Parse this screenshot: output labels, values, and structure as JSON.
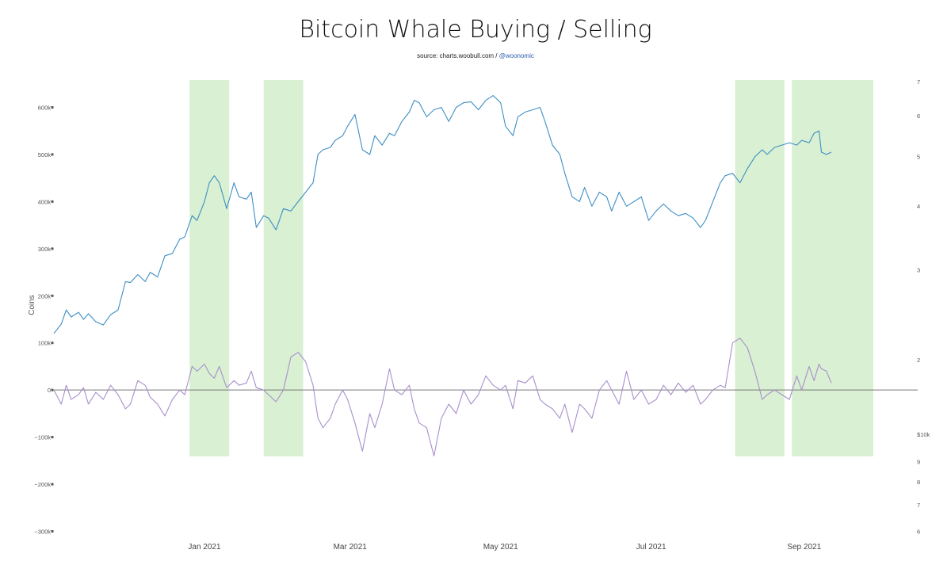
{
  "title": "Bitcoin Whale Buying / Selling",
  "source_prefix": "source: charts.woobull.com / ",
  "source_handle": "@woonomic",
  "colors": {
    "price": "#3d8fc4",
    "flow": "#a88fcc",
    "shade": "#d9f0d2",
    "zero_line": "#777777"
  },
  "chart_data": {
    "type": "line",
    "title": "Bitcoin Whale Buying / Selling",
    "ylabel": "Coins",
    "ylim": [
      -300000,
      700000
    ],
    "y_ticks": [
      {
        "v": 600000,
        "label": "600k"
      },
      {
        "v": 500000,
        "label": "500k"
      },
      {
        "v": 400000,
        "label": "400k"
      },
      {
        "v": 300000,
        "label": "300k"
      },
      {
        "v": 200000,
        "label": "200k"
      },
      {
        "v": 100000,
        "label": "100k"
      },
      {
        "v": 0,
        "label": "0"
      },
      {
        "v": -100000,
        "label": "−100k"
      },
      {
        "v": -200000,
        "label": "−200k"
      },
      {
        "v": -300000,
        "label": "−300k"
      }
    ],
    "x_range": [
      "2020-11-01",
      "2021-10-17"
    ],
    "x_ticks": [
      {
        "date": "2021-01-01",
        "label": "Jan 2021"
      },
      {
        "date": "2021-03-01",
        "label": "Mar 2021"
      },
      {
        "date": "2021-05-01",
        "label": "May 2021"
      },
      {
        "date": "2021-07-01",
        "label": "Jul 2021"
      },
      {
        "date": "2021-09-01",
        "label": "Sep 2021"
      }
    ],
    "right_axis_top": {
      "log_range": [
        1.3,
        7.2
      ],
      "ticks": [
        {
          "v": 7,
          "label": "7"
        },
        {
          "v": 6,
          "label": "6"
        },
        {
          "v": 5,
          "label": "5"
        },
        {
          "v": 4,
          "label": "4"
        },
        {
          "v": 3,
          "label": "3"
        },
        {
          "v": 2,
          "label": "2"
        }
      ]
    },
    "right_axis_bottom": {
      "unit_label": "$10k",
      "log_range": [
        5.8,
        10.3
      ],
      "ticks": [
        {
          "v": 9,
          "label": "9"
        },
        {
          "v": 8,
          "label": "8"
        },
        {
          "v": 7,
          "label": "7"
        },
        {
          "v": 6,
          "label": "6"
        }
      ]
    },
    "shaded_periods": [
      [
        "2020-12-26",
        "2021-01-11"
      ],
      [
        "2021-01-25",
        "2021-02-10"
      ],
      [
        "2021-08-04",
        "2021-08-24"
      ],
      [
        "2021-08-27",
        "2021-09-29"
      ]
    ],
    "series": [
      {
        "name": "",
        "axis": "left",
        "points": [
          [
            "2020-11-01",
            120000
          ],
          [
            "2020-11-04",
            140000
          ],
          [
            "2020-11-06",
            170000
          ],
          [
            "2020-11-08",
            155000
          ],
          [
            "2020-11-11",
            165000
          ],
          [
            "2020-11-13",
            150000
          ],
          [
            "2020-11-15",
            162000
          ],
          [
            "2020-11-18",
            145000
          ],
          [
            "2020-11-21",
            138000
          ],
          [
            "2020-11-24",
            160000
          ],
          [
            "2020-11-27",
            170000
          ],
          [
            "2020-11-30",
            230000
          ],
          [
            "2020-12-02",
            228000
          ],
          [
            "2020-12-05",
            245000
          ],
          [
            "2020-12-08",
            230000
          ],
          [
            "2020-12-10",
            250000
          ],
          [
            "2020-12-13",
            240000
          ],
          [
            "2020-12-16",
            285000
          ],
          [
            "2020-12-19",
            290000
          ],
          [
            "2020-12-22",
            320000
          ],
          [
            "2020-12-24",
            325000
          ],
          [
            "2020-12-27",
            370000
          ],
          [
            "2020-12-29",
            360000
          ],
          [
            "2021-01-01",
            400000
          ],
          [
            "2021-01-03",
            440000
          ],
          [
            "2021-01-05",
            455000
          ],
          [
            "2021-01-07",
            440000
          ],
          [
            "2021-01-10",
            385000
          ],
          [
            "2021-01-13",
            440000
          ],
          [
            "2021-01-15",
            410000
          ],
          [
            "2021-01-18",
            405000
          ],
          [
            "2021-01-20",
            420000
          ],
          [
            "2021-01-22",
            345000
          ],
          [
            "2021-01-25",
            370000
          ],
          [
            "2021-01-27",
            365000
          ],
          [
            "2021-01-30",
            340000
          ],
          [
            "2021-02-02",
            385000
          ],
          [
            "2021-02-05",
            380000
          ],
          [
            "2021-02-08",
            400000
          ],
          [
            "2021-02-11",
            420000
          ],
          [
            "2021-02-14",
            440000
          ],
          [
            "2021-02-16",
            500000
          ],
          [
            "2021-02-18",
            510000
          ],
          [
            "2021-02-21",
            515000
          ],
          [
            "2021-02-23",
            530000
          ],
          [
            "2021-02-26",
            540000
          ],
          [
            "2021-02-28",
            560000
          ],
          [
            "2021-03-03",
            585000
          ],
          [
            "2021-03-06",
            510000
          ],
          [
            "2021-03-09",
            500000
          ],
          [
            "2021-03-11",
            540000
          ],
          [
            "2021-03-14",
            520000
          ],
          [
            "2021-03-17",
            545000
          ],
          [
            "2021-03-19",
            540000
          ],
          [
            "2021-03-22",
            570000
          ],
          [
            "2021-03-25",
            590000
          ],
          [
            "2021-03-27",
            615000
          ],
          [
            "2021-03-29",
            610000
          ],
          [
            "2021-04-01",
            580000
          ],
          [
            "2021-04-04",
            595000
          ],
          [
            "2021-04-07",
            600000
          ],
          [
            "2021-04-10",
            570000
          ],
          [
            "2021-04-13",
            600000
          ],
          [
            "2021-04-16",
            610000
          ],
          [
            "2021-04-19",
            612000
          ],
          [
            "2021-04-22",
            595000
          ],
          [
            "2021-04-25",
            615000
          ],
          [
            "2021-04-28",
            625000
          ],
          [
            "2021-05-01",
            610000
          ],
          [
            "2021-05-03",
            560000
          ],
          [
            "2021-05-06",
            540000
          ],
          [
            "2021-05-08",
            580000
          ],
          [
            "2021-05-11",
            590000
          ],
          [
            "2021-05-14",
            595000
          ],
          [
            "2021-05-17",
            600000
          ],
          [
            "2021-05-19",
            570000
          ],
          [
            "2021-05-22",
            520000
          ],
          [
            "2021-05-25",
            500000
          ],
          [
            "2021-05-27",
            460000
          ],
          [
            "2021-05-30",
            410000
          ],
          [
            "2021-06-02",
            400000
          ],
          [
            "2021-06-04",
            430000
          ],
          [
            "2021-06-07",
            390000
          ],
          [
            "2021-06-10",
            420000
          ],
          [
            "2021-06-13",
            410000
          ],
          [
            "2021-06-15",
            380000
          ],
          [
            "2021-06-18",
            420000
          ],
          [
            "2021-06-21",
            390000
          ],
          [
            "2021-06-24",
            400000
          ],
          [
            "2021-06-27",
            410000
          ],
          [
            "2021-06-30",
            360000
          ],
          [
            "2021-07-03",
            380000
          ],
          [
            "2021-07-06",
            395000
          ],
          [
            "2021-07-09",
            380000
          ],
          [
            "2021-07-12",
            370000
          ],
          [
            "2021-07-15",
            375000
          ],
          [
            "2021-07-18",
            365000
          ],
          [
            "2021-07-21",
            345000
          ],
          [
            "2021-07-23",
            360000
          ],
          [
            "2021-07-26",
            400000
          ],
          [
            "2021-07-29",
            440000
          ],
          [
            "2021-07-31",
            455000
          ],
          [
            "2021-08-03",
            460000
          ],
          [
            "2021-08-06",
            440000
          ],
          [
            "2021-08-09",
            470000
          ],
          [
            "2021-08-12",
            495000
          ],
          [
            "2021-08-15",
            510000
          ],
          [
            "2021-08-17",
            500000
          ],
          [
            "2021-08-20",
            515000
          ],
          [
            "2021-08-23",
            520000
          ],
          [
            "2021-08-26",
            525000
          ],
          [
            "2021-08-29",
            520000
          ],
          [
            "2021-08-31",
            530000
          ],
          [
            "2021-09-03",
            525000
          ],
          [
            "2021-09-05",
            545000
          ],
          [
            "2021-09-07",
            550000
          ],
          [
            "2021-09-08",
            505000
          ],
          [
            "2021-09-10",
            500000
          ],
          [
            "2021-09-12",
            505000
          ]
        ]
      },
      {
        "name": "",
        "axis": "left",
        "points": [
          [
            "2020-11-01",
            0
          ],
          [
            "2020-11-04",
            -30000
          ],
          [
            "2020-11-06",
            10000
          ],
          [
            "2020-11-08",
            -20000
          ],
          [
            "2020-11-11",
            -10000
          ],
          [
            "2020-11-13",
            5000
          ],
          [
            "2020-11-15",
            -30000
          ],
          [
            "2020-11-18",
            -5000
          ],
          [
            "2020-11-21",
            -20000
          ],
          [
            "2020-11-24",
            10000
          ],
          [
            "2020-11-27",
            -10000
          ],
          [
            "2020-11-30",
            -40000
          ],
          [
            "2020-12-02",
            -30000
          ],
          [
            "2020-12-05",
            20000
          ],
          [
            "2020-12-08",
            10000
          ],
          [
            "2020-12-10",
            -15000
          ],
          [
            "2020-12-13",
            -30000
          ],
          [
            "2020-12-16",
            -55000
          ],
          [
            "2020-12-19",
            -20000
          ],
          [
            "2020-12-22",
            0
          ],
          [
            "2020-12-24",
            -10000
          ],
          [
            "2020-12-27",
            50000
          ],
          [
            "2020-12-29",
            40000
          ],
          [
            "2021-01-01",
            55000
          ],
          [
            "2021-01-03",
            35000
          ],
          [
            "2021-01-05",
            25000
          ],
          [
            "2021-01-07",
            50000
          ],
          [
            "2021-01-10",
            5000
          ],
          [
            "2021-01-13",
            20000
          ],
          [
            "2021-01-15",
            10000
          ],
          [
            "2021-01-18",
            15000
          ],
          [
            "2021-01-20",
            40000
          ],
          [
            "2021-01-22",
            5000
          ],
          [
            "2021-01-25",
            0
          ],
          [
            "2021-01-27",
            -10000
          ],
          [
            "2021-01-30",
            -25000
          ],
          [
            "2021-02-02",
            0
          ],
          [
            "2021-02-05",
            70000
          ],
          [
            "2021-02-08",
            80000
          ],
          [
            "2021-02-11",
            60000
          ],
          [
            "2021-02-14",
            10000
          ],
          [
            "2021-02-16",
            -60000
          ],
          [
            "2021-02-18",
            -80000
          ],
          [
            "2021-02-21",
            -60000
          ],
          [
            "2021-02-23",
            -30000
          ],
          [
            "2021-02-26",
            0
          ],
          [
            "2021-02-28",
            -20000
          ],
          [
            "2021-03-03",
            -70000
          ],
          [
            "2021-03-06",
            -130000
          ],
          [
            "2021-03-09",
            -50000
          ],
          [
            "2021-03-11",
            -80000
          ],
          [
            "2021-03-14",
            -30000
          ],
          [
            "2021-03-17",
            45000
          ],
          [
            "2021-03-19",
            0
          ],
          [
            "2021-03-22",
            -10000
          ],
          [
            "2021-03-25",
            10000
          ],
          [
            "2021-03-27",
            -40000
          ],
          [
            "2021-03-29",
            -70000
          ],
          [
            "2021-04-01",
            -80000
          ],
          [
            "2021-04-04",
            -140000
          ],
          [
            "2021-04-07",
            -60000
          ],
          [
            "2021-04-10",
            -30000
          ],
          [
            "2021-04-13",
            -50000
          ],
          [
            "2021-04-16",
            0
          ],
          [
            "2021-04-19",
            -30000
          ],
          [
            "2021-04-22",
            -10000
          ],
          [
            "2021-04-25",
            30000
          ],
          [
            "2021-04-28",
            10000
          ],
          [
            "2021-05-01",
            0
          ],
          [
            "2021-05-03",
            10000
          ],
          [
            "2021-05-06",
            -40000
          ],
          [
            "2021-05-08",
            20000
          ],
          [
            "2021-05-11",
            15000
          ],
          [
            "2021-05-14",
            30000
          ],
          [
            "2021-05-17",
            -20000
          ],
          [
            "2021-05-19",
            -30000
          ],
          [
            "2021-05-22",
            -40000
          ],
          [
            "2021-05-25",
            -60000
          ],
          [
            "2021-05-27",
            -30000
          ],
          [
            "2021-05-30",
            -90000
          ],
          [
            "2021-06-02",
            -30000
          ],
          [
            "2021-06-04",
            -40000
          ],
          [
            "2021-06-07",
            -60000
          ],
          [
            "2021-06-10",
            0
          ],
          [
            "2021-06-13",
            20000
          ],
          [
            "2021-06-15",
            0
          ],
          [
            "2021-06-18",
            -30000
          ],
          [
            "2021-06-21",
            40000
          ],
          [
            "2021-06-24",
            -20000
          ],
          [
            "2021-06-27",
            0
          ],
          [
            "2021-06-30",
            -30000
          ],
          [
            "2021-07-03",
            -20000
          ],
          [
            "2021-07-06",
            10000
          ],
          [
            "2021-07-09",
            -10000
          ],
          [
            "2021-07-12",
            15000
          ],
          [
            "2021-07-15",
            -5000
          ],
          [
            "2021-07-18",
            10000
          ],
          [
            "2021-07-21",
            -30000
          ],
          [
            "2021-07-23",
            -20000
          ],
          [
            "2021-07-26",
            0
          ],
          [
            "2021-07-29",
            10000
          ],
          [
            "2021-07-31",
            5000
          ],
          [
            "2021-08-03",
            100000
          ],
          [
            "2021-08-06",
            110000
          ],
          [
            "2021-08-09",
            90000
          ],
          [
            "2021-08-12",
            40000
          ],
          [
            "2021-08-15",
            -20000
          ],
          [
            "2021-08-17",
            -10000
          ],
          [
            "2021-08-20",
            0
          ],
          [
            "2021-08-23",
            -10000
          ],
          [
            "2021-08-26",
            -20000
          ],
          [
            "2021-08-29",
            30000
          ],
          [
            "2021-08-31",
            0
          ],
          [
            "2021-09-03",
            50000
          ],
          [
            "2021-09-05",
            20000
          ],
          [
            "2021-09-07",
            55000
          ],
          [
            "2021-09-08",
            45000
          ],
          [
            "2021-09-10",
            40000
          ],
          [
            "2021-09-12",
            15000
          ]
        ]
      }
    ]
  }
}
